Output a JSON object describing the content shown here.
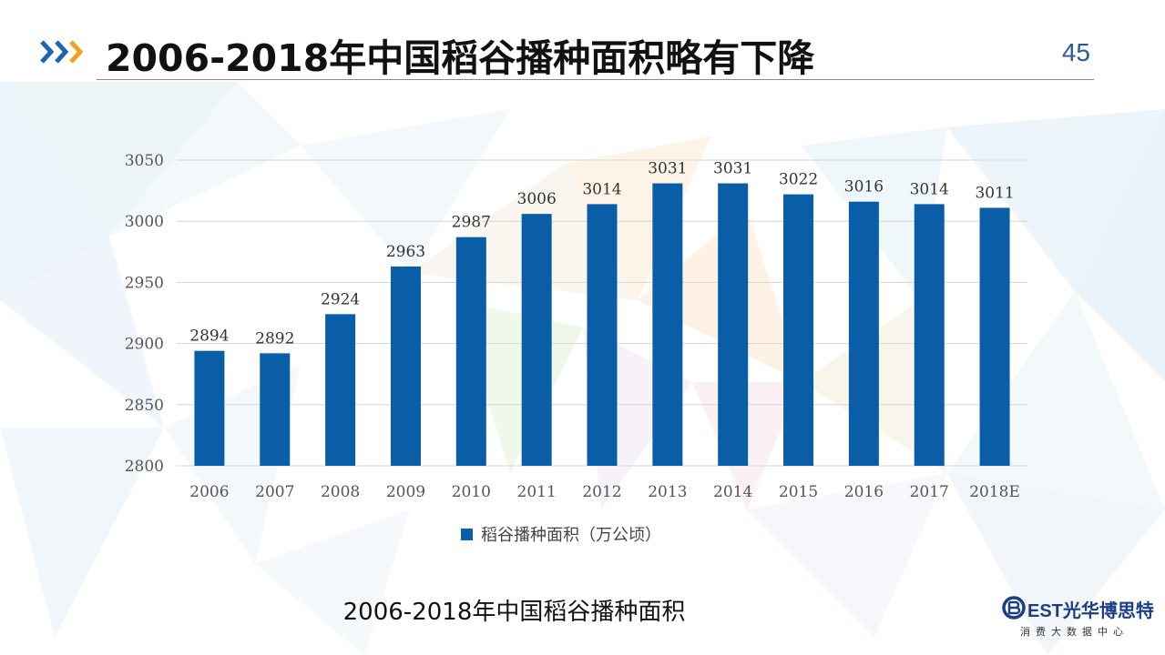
{
  "header": {
    "title": "2006-2018年中国稻谷播种面积略有下降",
    "page_number": "45"
  },
  "caption": "2006-2018年中国稻谷播种面积",
  "logo": {
    "brand_prefix": "EST",
    "brand_name": "光华博思特",
    "tagline": "消费大数据中心"
  },
  "colors": {
    "bar": "#0a5ea8",
    "accent_blue": "#1e64b4",
    "accent_orange": "#f2a024"
  },
  "chart_data": {
    "type": "bar",
    "title": "",
    "xlabel": "",
    "ylabel": "",
    "categories": [
      "2006",
      "2007",
      "2008",
      "2009",
      "2010",
      "2011",
      "2012",
      "2013",
      "2014",
      "2015",
      "2016",
      "2017",
      "2018E"
    ],
    "series": [
      {
        "name": "稻谷播种面积（万公顷）",
        "values": [
          2894,
          2892,
          2924,
          2963,
          2987,
          3006,
          3014,
          3031,
          3031,
          3022,
          3016,
          3014,
          3011
        ]
      }
    ],
    "ylim": [
      2800,
      3050
    ],
    "yticks": [
      2800,
      2850,
      2900,
      2950,
      3000,
      3050
    ],
    "grid": true,
    "legend_position": "bottom"
  }
}
